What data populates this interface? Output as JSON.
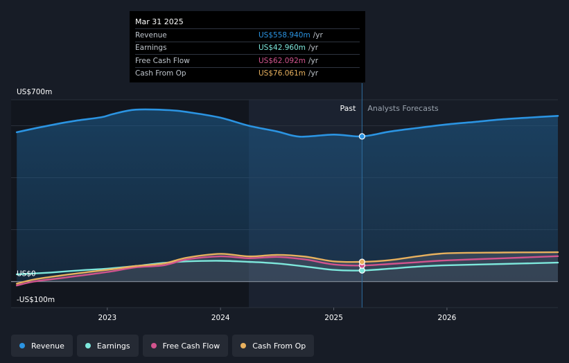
{
  "tooltip": {
    "date": "Mar 31 2025",
    "rows": [
      {
        "name": "Revenue",
        "value": "US$558.940m",
        "unit": "/yr",
        "color": "#2b94e2"
      },
      {
        "name": "Earnings",
        "value": "US$42.960m",
        "unit": "/yr",
        "color": "#7ee8dc"
      },
      {
        "name": "Free Cash Flow",
        "value": "US$62.092m",
        "unit": "/yr",
        "color": "#d2548e"
      },
      {
        "name": "Cash From Op",
        "value": "US$76.061m",
        "unit": "/yr",
        "color": "#e8b15e"
      }
    ]
  },
  "labels": {
    "past": "Past",
    "forecast": "Analysts Forecasts"
  },
  "legend": [
    {
      "name": "Revenue",
      "color": "#2b94e2"
    },
    {
      "name": "Earnings",
      "color": "#7ee8dc"
    },
    {
      "name": "Free Cash Flow",
      "color": "#d2548e"
    },
    {
      "name": "Cash From Op",
      "color": "#e8b15e"
    }
  ],
  "chart_data": {
    "type": "line",
    "title": "",
    "xlabel": "",
    "ylabel": "",
    "unit": "US$m",
    "ylim": [
      -100,
      700
    ],
    "y_tick_labels": [
      {
        "value": 700,
        "label": "US$700m"
      },
      {
        "value": 0,
        "label": "US$0"
      },
      {
        "value": -100,
        "label": "-US$100m"
      }
    ],
    "gridlines": [
      700,
      600,
      400,
      200,
      0
    ],
    "xlim": [
      2022.15,
      2026.98
    ],
    "x_ticks": [
      {
        "value": 2023,
        "label": "2023"
      },
      {
        "value": 2024,
        "label": "2024"
      },
      {
        "value": 2025,
        "label": "2025"
      },
      {
        "value": 2026,
        "label": "2026"
      }
    ],
    "highlight_start": 2024.25,
    "present": 2025.25,
    "series": [
      {
        "name": "Revenue",
        "color": "#2b94e2",
        "points": [
          [
            2022.2,
            575
          ],
          [
            2022.45,
            598
          ],
          [
            2022.7,
            618
          ],
          [
            2022.95,
            633
          ],
          [
            2023.05,
            645
          ],
          [
            2023.25,
            662
          ],
          [
            2023.55,
            660
          ],
          [
            2023.75,
            650
          ],
          [
            2024.0,
            631
          ],
          [
            2024.25,
            600
          ],
          [
            2024.5,
            578
          ],
          [
            2024.7,
            558
          ],
          [
            2025.0,
            566
          ],
          [
            2025.25,
            559
          ],
          [
            2025.5,
            578
          ],
          [
            2025.75,
            592
          ],
          [
            2026.0,
            605
          ],
          [
            2026.25,
            615
          ],
          [
            2026.5,
            625
          ],
          [
            2026.75,
            632
          ],
          [
            2026.98,
            638
          ]
        ]
      },
      {
        "name": "Earnings",
        "color": "#7ee8dc",
        "points": [
          [
            2022.2,
            28
          ],
          [
            2022.5,
            35
          ],
          [
            2022.75,
            43
          ],
          [
            2023.0,
            50
          ],
          [
            2023.25,
            60
          ],
          [
            2023.5,
            72
          ],
          [
            2023.7,
            78
          ],
          [
            2024.0,
            80
          ],
          [
            2024.25,
            76
          ],
          [
            2024.5,
            70
          ],
          [
            2024.75,
            58
          ],
          [
            2025.0,
            45
          ],
          [
            2025.25,
            43
          ],
          [
            2025.5,
            50
          ],
          [
            2025.75,
            58
          ],
          [
            2026.0,
            63
          ],
          [
            2026.5,
            68
          ],
          [
            2026.98,
            73
          ]
        ]
      },
      {
        "name": "Free Cash Flow",
        "color": "#d2548e",
        "points": [
          [
            2022.2,
            -15
          ],
          [
            2022.35,
            0
          ],
          [
            2022.6,
            14
          ],
          [
            2022.85,
            28
          ],
          [
            2023.05,
            40
          ],
          [
            2023.25,
            55
          ],
          [
            2023.5,
            63
          ],
          [
            2023.7,
            85
          ],
          [
            2024.0,
            97
          ],
          [
            2024.25,
            90
          ],
          [
            2024.5,
            95
          ],
          [
            2024.75,
            85
          ],
          [
            2025.0,
            66
          ],
          [
            2025.25,
            62
          ],
          [
            2025.5,
            68
          ],
          [
            2025.75,
            75
          ],
          [
            2026.0,
            82
          ],
          [
            2026.5,
            90
          ],
          [
            2026.98,
            98
          ]
        ]
      },
      {
        "name": "Cash From Op",
        "color": "#e8b15e",
        "points": [
          [
            2022.2,
            -8
          ],
          [
            2022.35,
            8
          ],
          [
            2022.6,
            24
          ],
          [
            2022.85,
            38
          ],
          [
            2023.05,
            48
          ],
          [
            2023.25,
            60
          ],
          [
            2023.5,
            70
          ],
          [
            2023.7,
            92
          ],
          [
            2024.0,
            107
          ],
          [
            2024.25,
            97
          ],
          [
            2024.5,
            103
          ],
          [
            2024.75,
            96
          ],
          [
            2025.0,
            78
          ],
          [
            2025.25,
            76
          ],
          [
            2025.5,
            83
          ],
          [
            2025.75,
            98
          ],
          [
            2026.0,
            109
          ],
          [
            2026.5,
            112
          ],
          [
            2026.98,
            113
          ]
        ]
      }
    ]
  }
}
